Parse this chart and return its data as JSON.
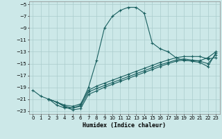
{
  "title": "",
  "xlabel": "Humidex (Indice chaleur)",
  "background_color": "#cce8e8",
  "grid_color": "#aacccc",
  "line_color": "#1a6060",
  "xlim": [
    -0.5,
    23.5
  ],
  "ylim": [
    -23.5,
    -4.5
  ],
  "yticks": [
    -5,
    -7,
    -9,
    -11,
    -13,
    -15,
    -17,
    -19,
    -21,
    -23
  ],
  "xticks": [
    0,
    1,
    2,
    3,
    4,
    5,
    6,
    7,
    8,
    9,
    10,
    11,
    12,
    13,
    14,
    15,
    16,
    17,
    18,
    19,
    20,
    21,
    22,
    23
  ],
  "curve1_x": [
    0,
    1,
    2,
    3,
    4,
    5,
    6,
    7,
    8,
    9,
    10,
    11,
    12,
    13,
    14,
    15,
    16,
    17,
    18,
    19,
    20,
    21,
    22,
    23
  ],
  "curve1_y": [
    -19.5,
    -20.5,
    -21.0,
    -22.0,
    -22.5,
    -22.5,
    -22.0,
    -19.0,
    -14.5,
    -9.0,
    -7.0,
    -6.0,
    -5.5,
    -5.5,
    -6.5,
    -11.5,
    -12.5,
    -13.0,
    -14.0,
    -14.5,
    -14.5,
    -14.5,
    -14.0,
    -13.0
  ],
  "curve2_x": [
    2,
    3,
    4,
    5,
    6,
    7,
    8,
    9,
    10,
    11,
    12,
    13,
    14,
    15,
    16,
    17,
    18,
    19,
    20,
    21,
    22,
    23
  ],
  "curve2_y": [
    -21.0,
    -21.5,
    -22.0,
    -22.2,
    -21.8,
    -19.5,
    -18.8,
    -18.3,
    -17.8,
    -17.3,
    -16.8,
    -16.3,
    -15.8,
    -15.3,
    -14.8,
    -14.4,
    -14.0,
    -13.8,
    -13.8,
    -13.8,
    -14.2,
    -14.0
  ],
  "curve3_x": [
    2,
    3,
    4,
    5,
    6,
    7,
    8,
    9,
    10,
    11,
    12,
    13,
    14,
    15,
    16,
    17,
    18,
    19,
    20,
    21,
    22,
    23
  ],
  "curve3_y": [
    -21.0,
    -21.5,
    -22.2,
    -22.5,
    -22.2,
    -19.8,
    -19.2,
    -18.7,
    -18.2,
    -17.7,
    -17.2,
    -16.7,
    -16.2,
    -15.7,
    -15.2,
    -14.8,
    -14.4,
    -14.2,
    -14.4,
    -14.6,
    -15.0,
    -13.5
  ],
  "curve4_x": [
    2,
    3,
    4,
    5,
    6,
    7,
    8,
    9,
    10,
    11,
    12,
    13,
    14,
    15,
    16,
    17,
    18,
    19,
    20,
    21,
    22,
    23
  ],
  "curve4_y": [
    -21.0,
    -21.5,
    -22.3,
    -22.8,
    -22.6,
    -20.2,
    -19.6,
    -19.0,
    -18.5,
    -18.0,
    -17.5,
    -17.0,
    -16.5,
    -16.0,
    -15.5,
    -15.0,
    -14.6,
    -14.4,
    -14.6,
    -14.8,
    -15.5,
    -13.2
  ]
}
